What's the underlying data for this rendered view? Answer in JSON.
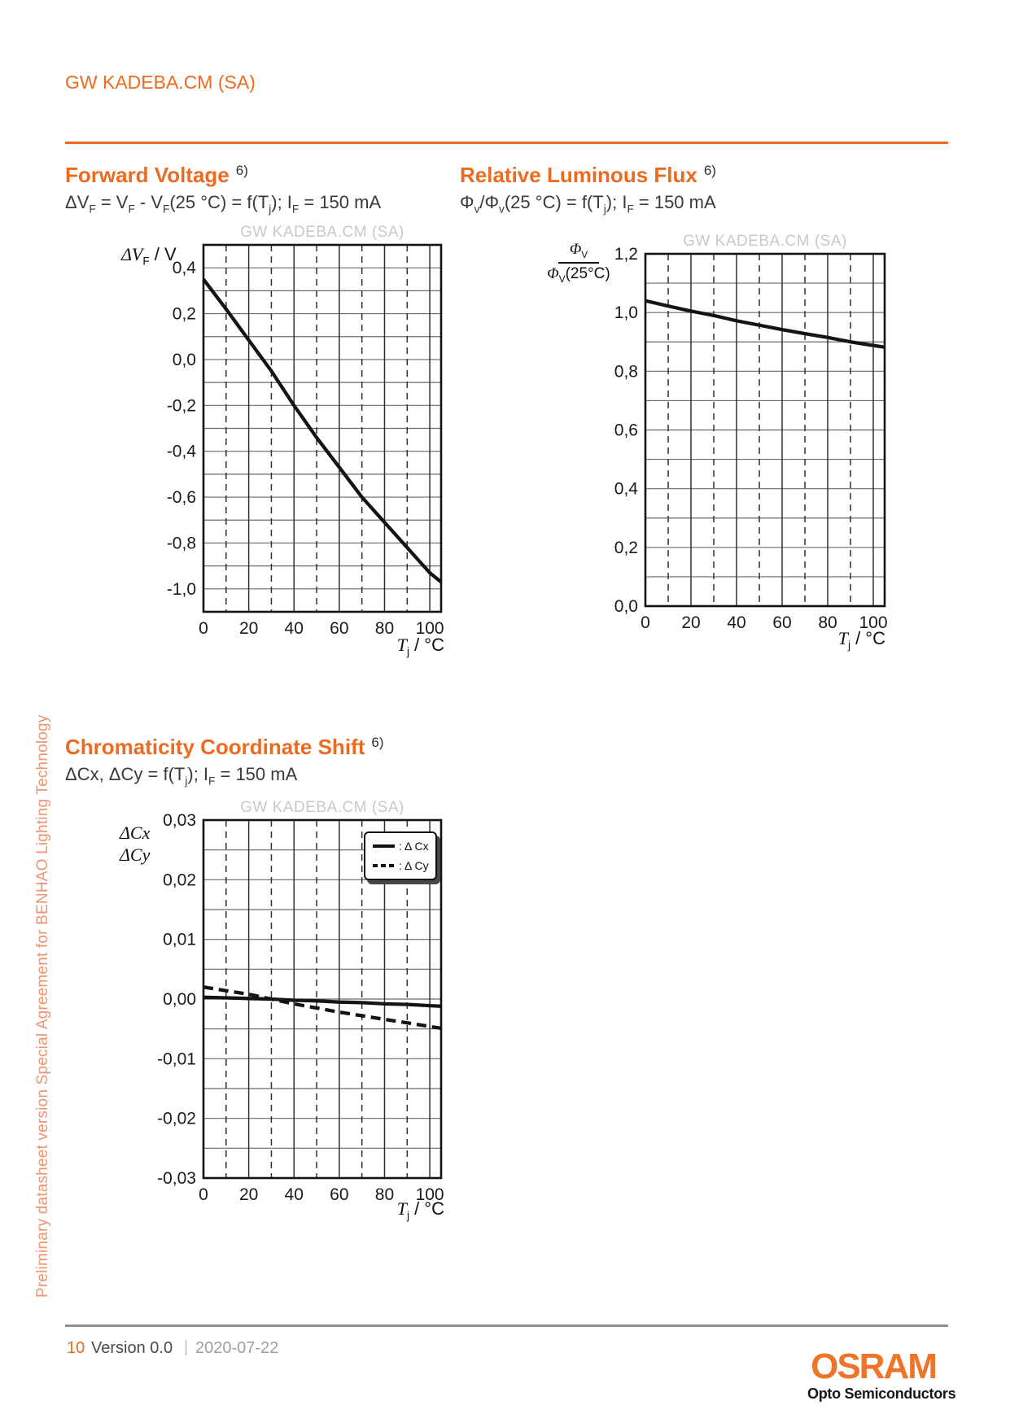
{
  "page": {
    "header": {
      "title": "GW KADEBA.CM (SA)"
    },
    "sidebar_text": "Preliminary datasheet version Special Agreement for BENHAO Lighting Technology",
    "footer": {
      "page_number": "10",
      "version": "Version 0.0",
      "separator": "|",
      "date": "2020-07-22",
      "brand": "OSRAM",
      "brand_sub": "Opto Semiconductors"
    },
    "colors": {
      "orange": "#ED6B21",
      "logo_orange": "#F0732A",
      "sidebar_salmon": "#EE9470",
      "watermark_gray": "#C9C9C9",
      "footer_rule_gray": "#8F8F8F",
      "curve_black": "#141414"
    }
  },
  "sections": {
    "forward_voltage": {
      "title": "Forward Voltage",
      "footnote": "6)",
      "formula": [
        {
          "t": "ΔV"
        },
        {
          "s": "F"
        },
        {
          "t": " = V"
        },
        {
          "s": "F"
        },
        {
          "t": " - V"
        },
        {
          "s": "F"
        },
        {
          "t": "(25 °C) = f(T"
        },
        {
          "s": "j"
        },
        {
          "t": "); I"
        },
        {
          "s": "F"
        },
        {
          "t": " = 150 mA"
        }
      ],
      "y_axis_title": [
        {
          "i": "ΔV"
        },
        {
          "s": "F"
        },
        {
          "t": " / V"
        }
      ],
      "x_axis_title": [
        {
          "i": "T"
        },
        {
          "s": "j"
        },
        {
          "t": " / °C"
        }
      ]
    },
    "relative_luminous_flux": {
      "title": "Relative Luminous Flux",
      "footnote": "6)",
      "formula": [
        {
          "t": "Φ"
        },
        {
          "s": "v"
        },
        {
          "t": "/Φ"
        },
        {
          "s": "v"
        },
        {
          "t": "(25 °C) = f(T"
        },
        {
          "s": "j"
        },
        {
          "t": "); I"
        },
        {
          "s": "F"
        },
        {
          "t": " = 150 mA"
        }
      ],
      "y_axis_fraction": {
        "numerator": [
          {
            "i": "Φ"
          },
          {
            "s": "V"
          }
        ],
        "denominator": [
          {
            "i": "Φ"
          },
          {
            "s": "V"
          },
          {
            "t": "(25°C)"
          }
        ]
      },
      "x_axis_title": [
        {
          "i": "T"
        },
        {
          "s": "j"
        },
        {
          "t": " / °C"
        }
      ]
    },
    "chromaticity": {
      "title": "Chromaticity Coordinate Shift",
      "footnote": "6)",
      "formula": [
        {
          "t": "ΔCx, ΔCy = f(T"
        },
        {
          "s": "j"
        },
        {
          "t": "); I"
        },
        {
          "s": "F"
        },
        {
          "t": " = 150 mA"
        }
      ],
      "y_axis_title_lines": [
        [
          {
            "i": "ΔCx"
          }
        ],
        [
          {
            "i": "ΔCy"
          }
        ]
      ],
      "x_axis_title": [
        {
          "i": "T"
        },
        {
          "s": "j"
        },
        {
          "t": " / °C"
        }
      ],
      "legend": [
        {
          "style": "solid",
          "label": ": Δ Cx"
        },
        {
          "style": "dashed",
          "label": ": Δ Cy"
        }
      ]
    }
  },
  "chart_data": [
    {
      "id": "forward_voltage",
      "type": "line",
      "title": "Forward Voltage",
      "subtitle": "ΔVF = VF - VF(25 °C) = f(Tj); IF = 150 mA",
      "watermark": "GW KADEBA.CM (SA)",
      "xlabel": "Tj / °C",
      "ylabel": "ΔVF / V",
      "xlim": [
        0,
        105
      ],
      "ylim": [
        -1.1,
        0.5
      ],
      "x_major": 20,
      "x_minor": 10,
      "y_minor": 0.1,
      "grid": true,
      "legend": null,
      "x_ticks": [
        {
          "v": 0,
          "label": "0"
        },
        {
          "v": 20,
          "label": "20"
        },
        {
          "v": 40,
          "label": "40"
        },
        {
          "v": 60,
          "label": "60"
        },
        {
          "v": 80,
          "label": "80"
        },
        {
          "v": 100,
          "label": "100"
        }
      ],
      "y_ticks": [
        {
          "v": 0.4,
          "label": "0,4"
        },
        {
          "v": 0.2,
          "label": "0,2"
        },
        {
          "v": 0,
          "label": "0,0"
        },
        {
          "v": -0.2,
          "label": "-0,2"
        },
        {
          "v": -0.4,
          "label": "-0,4"
        },
        {
          "v": -0.6,
          "label": "-0,6"
        },
        {
          "v": -0.8,
          "label": "-0,8"
        },
        {
          "v": -1,
          "label": "-1,0"
        }
      ],
      "series": [
        {
          "name": "ΔVF",
          "style": "solid",
          "points": [
            [
              0,
              0.35
            ],
            [
              10,
              0.22
            ],
            [
              20,
              0.085
            ],
            [
              30,
              -0.05
            ],
            [
              40,
              -0.2
            ],
            [
              50,
              -0.34
            ],
            [
              60,
              -0.47
            ],
            [
              70,
              -0.6
            ],
            [
              80,
              -0.71
            ],
            [
              90,
              -0.82
            ],
            [
              100,
              -0.93
            ],
            [
              105,
              -0.97
            ]
          ]
        }
      ]
    },
    {
      "id": "relative_luminous_flux",
      "type": "line",
      "title": "Relative Luminous Flux",
      "subtitle": "Φv/Φv(25 °C) = f(Tj); IF = 150 mA",
      "watermark": "GW KADEBA.CM (SA)",
      "xlabel": "Tj / °C",
      "ylabel": "Φv / Φv(25°C)",
      "xlim": [
        0,
        105
      ],
      "ylim": [
        0,
        1.2
      ],
      "x_major": 20,
      "x_minor": 10,
      "y_minor": 0.1,
      "grid": true,
      "legend": null,
      "x_ticks": [
        {
          "v": 0,
          "label": "0"
        },
        {
          "v": 20,
          "label": "20"
        },
        {
          "v": 40,
          "label": "40"
        },
        {
          "v": 60,
          "label": "60"
        },
        {
          "v": 80,
          "label": "80"
        },
        {
          "v": 100,
          "label": "100"
        }
      ],
      "y_ticks": [
        {
          "v": 1.2,
          "label": "1,2"
        },
        {
          "v": 1,
          "label": "1,0"
        },
        {
          "v": 0.8,
          "label": "0,8"
        },
        {
          "v": 0.6,
          "label": "0,6"
        },
        {
          "v": 0.4,
          "label": "0,4"
        },
        {
          "v": 0.2,
          "label": "0,2"
        },
        {
          "v": 0,
          "label": "0,0"
        }
      ],
      "series": [
        {
          "name": "Φv/Φv(25°C)",
          "style": "solid",
          "points": [
            [
              0,
              1.04
            ],
            [
              10,
              1.022
            ],
            [
              20,
              1.005
            ],
            [
              30,
              0.99
            ],
            [
              40,
              0.972
            ],
            [
              50,
              0.957
            ],
            [
              60,
              0.942
            ],
            [
              70,
              0.928
            ],
            [
              80,
              0.915
            ],
            [
              90,
              0.9
            ],
            [
              100,
              0.888
            ],
            [
              105,
              0.882
            ]
          ]
        }
      ]
    },
    {
      "id": "chromaticity_coordinate_shift",
      "type": "line",
      "title": "Chromaticity Coordinate Shift",
      "subtitle": "ΔCx, ΔCy = f(Tj); IF = 150 mA",
      "watermark": "GW KADEBA.CM (SA)",
      "xlabel": "Tj / °C",
      "ylabel": "ΔCx, ΔCy",
      "xlim": [
        0,
        105
      ],
      "ylim": [
        -0.03,
        0.03
      ],
      "x_major": 20,
      "x_minor": 10,
      "y_minor": 0.005,
      "grid": true,
      "legend": {
        "position": "top-right",
        "entries": [
          {
            "label": ": Δ Cx",
            "line": "solid"
          },
          {
            "label": ": Δ Cy",
            "line": "dashed"
          }
        ]
      },
      "x_ticks": [
        {
          "v": 0,
          "label": "0"
        },
        {
          "v": 20,
          "label": "20"
        },
        {
          "v": 40,
          "label": "40"
        },
        {
          "v": 60,
          "label": "60"
        },
        {
          "v": 80,
          "label": "80"
        },
        {
          "v": 100,
          "label": "100"
        }
      ],
      "y_ticks": [
        {
          "v": 0.03,
          "label": "0,03"
        },
        {
          "v": 0.02,
          "label": "0,02"
        },
        {
          "v": 0.01,
          "label": "0,01"
        },
        {
          "v": 0,
          "label": "0,00"
        },
        {
          "v": -0.01,
          "label": "-0,01"
        },
        {
          "v": -0.02,
          "label": "-0,02"
        },
        {
          "v": -0.03,
          "label": "-0,03"
        }
      ],
      "series": [
        {
          "name": "ΔCx",
          "style": "solid",
          "points": [
            [
              0,
              0.0003
            ],
            [
              10,
              0.0002
            ],
            [
              20,
              0.0001
            ],
            [
              30,
              0
            ],
            [
              40,
              -0.0002
            ],
            [
              50,
              -0.0003
            ],
            [
              60,
              -0.0005
            ],
            [
              70,
              -0.0006
            ],
            [
              80,
              -0.0008
            ],
            [
              90,
              -0.0009
            ],
            [
              100,
              -0.0011
            ],
            [
              105,
              -0.0012
            ]
          ]
        },
        {
          "name": "ΔCy",
          "style": "dashed",
          "points": [
            [
              0,
              0.002
            ],
            [
              10,
              0.0014
            ],
            [
              20,
              0.0008
            ],
            [
              30,
              0
            ],
            [
              40,
              -0.0008
            ],
            [
              50,
              -0.0015
            ],
            [
              60,
              -0.0022
            ],
            [
              70,
              -0.0028
            ],
            [
              80,
              -0.0034
            ],
            [
              90,
              -0.004
            ],
            [
              100,
              -0.0046
            ],
            [
              105,
              -0.0049
            ]
          ]
        }
      ]
    }
  ]
}
